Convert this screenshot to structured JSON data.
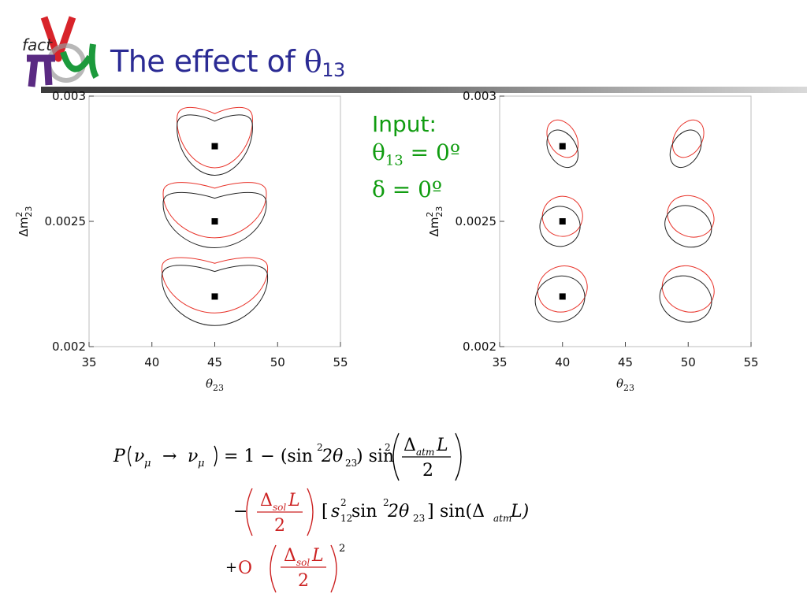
{
  "slide": {
    "title_text": "The effect of ",
    "title_symbol": "θ",
    "title_subscript": "13",
    "logo_text": "fact"
  },
  "input": {
    "heading": "Input:",
    "theta_symbol": "θ",
    "theta_subscript": "13",
    "theta_value": " = 0º",
    "delta_text": "δ = 0º"
  },
  "colors": {
    "title": "#2b2b94",
    "input": "#109c10",
    "contour_red": "#e8332a",
    "contour_black": "#222222",
    "formula_red": "#cc2222"
  },
  "chart_data": [
    {
      "type": "scatter",
      "xlabel": "θ23",
      "ylabel": "Δm223",
      "xlim": [
        35,
        55
      ],
      "ylim": [
        0.002,
        0.003
      ],
      "xticks": [
        "35",
        "40",
        "45",
        "50",
        "55"
      ],
      "yticks": [
        "0.002",
        "0.0025",
        "0.003"
      ],
      "grid": false,
      "true_points": [
        {
          "x": 45,
          "y": 0.0028
        },
        {
          "x": 45,
          "y": 0.0025
        },
        {
          "x": 45,
          "y": 0.0022
        }
      ],
      "contours": [
        {
          "color": "red",
          "cx": 45,
          "cy": 0.00284,
          "x_halfwidth": 3.0,
          "y_halfwidth": 0.00012
        },
        {
          "color": "black",
          "cx": 45,
          "cy": 0.00281,
          "x_halfwidth": 3.0,
          "y_halfwidth": 0.00012
        },
        {
          "color": "red",
          "cx": 45,
          "cy": 0.00255,
          "x_halfwidth": 4.1,
          "y_halfwidth": 0.00011
        },
        {
          "color": "black",
          "cx": 45,
          "cy": 0.00251,
          "x_halfwidth": 4.1,
          "y_halfwidth": 0.00011
        },
        {
          "color": "red",
          "cx": 45,
          "cy": 0.00225,
          "x_halfwidth": 4.2,
          "y_halfwidth": 0.00011
        },
        {
          "color": "black",
          "cx": 45,
          "cy": 0.00221,
          "x_halfwidth": 4.2,
          "y_halfwidth": 0.00012
        }
      ]
    },
    {
      "type": "scatter",
      "xlabel": "θ23",
      "ylabel": "Δm223",
      "xlim": [
        35,
        55
      ],
      "ylim": [
        0.002,
        0.003
      ],
      "xticks": [
        "35",
        "40",
        "45",
        "50",
        "55"
      ],
      "yticks": [
        "0.002",
        "0.0025",
        "0.003"
      ],
      "grid": false,
      "true_points": [
        {
          "x": 40,
          "y": 0.0028
        },
        {
          "x": 40,
          "y": 0.0025
        },
        {
          "x": 40,
          "y": 0.0022
        }
      ],
      "contours": [
        {
          "color": "red",
          "cx": 40,
          "cy": 0.00283,
          "rx": 1.1,
          "ry": 8e-05,
          "tilt": -30
        },
        {
          "color": "black",
          "cx": 40,
          "cy": 0.00279,
          "rx": 1.1,
          "ry": 8e-05,
          "tilt": -30
        },
        {
          "color": "red",
          "cx": 50,
          "cy": 0.00283,
          "rx": 1.1,
          "ry": 8e-05,
          "tilt": 30
        },
        {
          "color": "black",
          "cx": 49.8,
          "cy": 0.00279,
          "rx": 1.1,
          "ry": 8e-05,
          "tilt": 30
        },
        {
          "color": "red",
          "cx": 40,
          "cy": 0.00252,
          "rx": 1.6,
          "ry": 8e-05,
          "tilt": -25
        },
        {
          "color": "black",
          "cx": 39.8,
          "cy": 0.00248,
          "rx": 1.6,
          "ry": 8e-05,
          "tilt": -25
        },
        {
          "color": "red",
          "cx": 50.2,
          "cy": 0.00252,
          "rx": 1.9,
          "ry": 8e-05,
          "tilt": 25
        },
        {
          "color": "black",
          "cx": 50,
          "cy": 0.00248,
          "rx": 1.9,
          "ry": 8e-05,
          "tilt": 25
        },
        {
          "color": "red",
          "cx": 40,
          "cy": 0.00223,
          "rx": 2.0,
          "ry": 9e-05,
          "tilt": -25
        },
        {
          "color": "black",
          "cx": 39.8,
          "cy": 0.00219,
          "rx": 2.0,
          "ry": 9e-05,
          "tilt": -25
        },
        {
          "color": "red",
          "cx": 50,
          "cy": 0.00223,
          "rx": 2.1,
          "ry": 9e-05,
          "tilt": 22
        },
        {
          "color": "black",
          "cx": 49.8,
          "cy": 0.00219,
          "rx": 2.1,
          "ry": 9e-05,
          "tilt": 22
        }
      ]
    }
  ],
  "formula": {
    "line1": {
      "P": "P",
      "nu1": "ν",
      "mu1": "μ",
      "arrow": "→",
      "nu2": "ν",
      "mu2": "μ",
      "rhs": "= 1 − (sin",
      "sq": "2",
      "two_theta": " 2θ",
      "sub23": "23",
      "close_sin": ") sin",
      "sq2": "2",
      "frac_num": "Δ",
      "frac_num_sub": "atm",
      "frac_num_L": "L",
      "frac_den": "2"
    },
    "line2": {
      "minus": "−",
      "frac_num": "Δ",
      "frac_num_sub": "sol",
      "frac_num_L": "L",
      "frac_den": "2",
      "bracket_open": "[",
      "s": "s",
      "s_sub": "12",
      "s_sup": "2",
      "sin": " sin",
      "sin_sup": "2",
      "two_theta": " 2θ",
      "sub23": "23",
      "bracket_close": "]",
      "sin2": "sin(Δ",
      "atm_sub": "atm",
      "L_close": "L)"
    },
    "line3": {
      "plus": "+",
      "O": "O",
      "frac_num": "Δ",
      "frac_num_sub": "sol",
      "frac_num_L": "L",
      "frac_den": "2",
      "sup": "2"
    }
  }
}
